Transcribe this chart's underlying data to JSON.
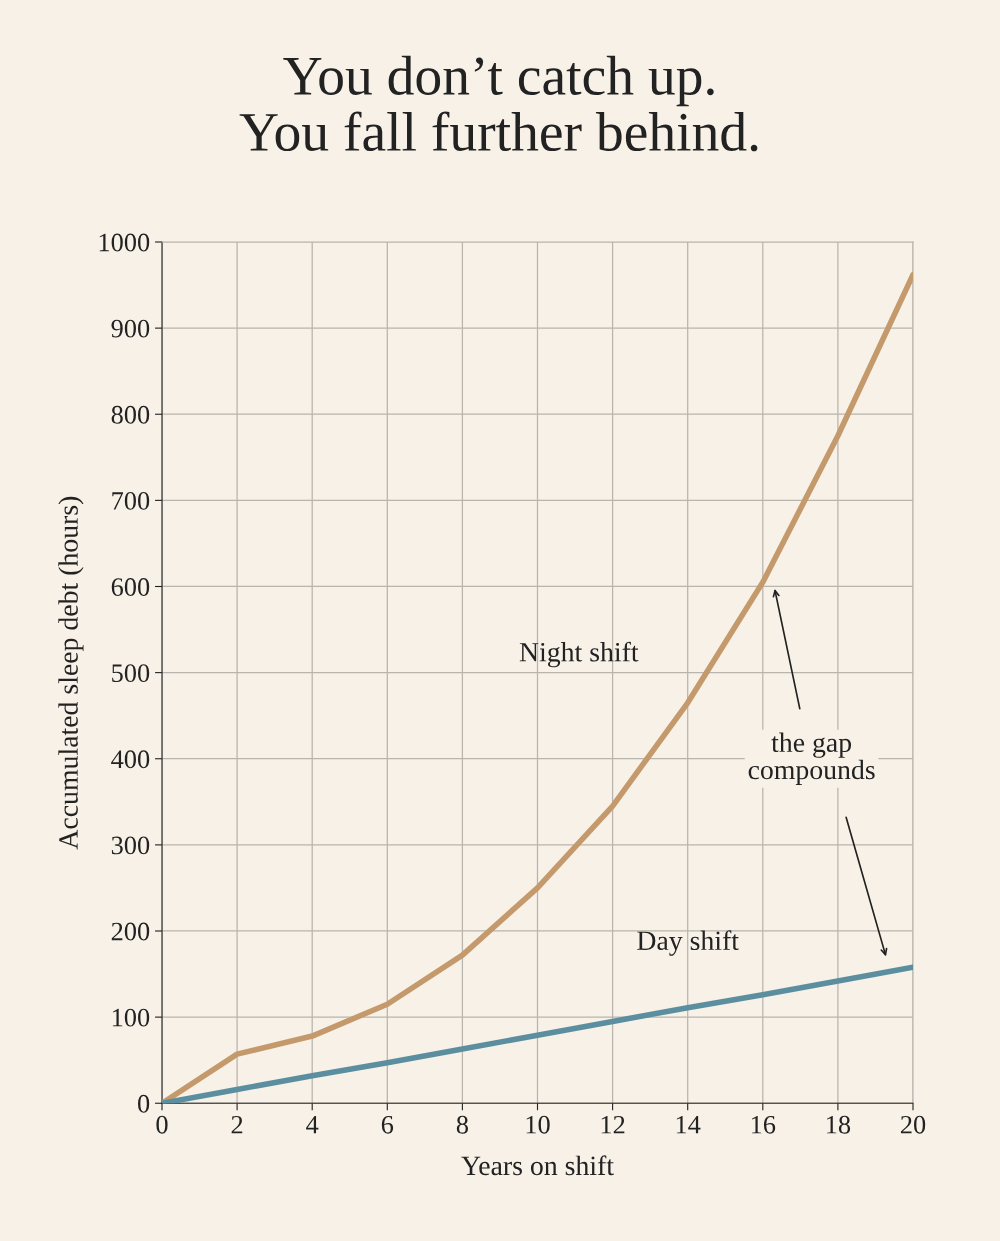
{
  "chart_data": {
    "type": "line",
    "title": "You don’t catch up.\nYou fall further behind.",
    "xlabel": "Years on shift",
    "ylabel": "Accumulated sleep debt (hours)",
    "x": [
      0,
      2,
      4,
      6,
      8,
      10,
      12,
      14,
      16,
      18,
      20
    ],
    "series": [
      {
        "name": "Night shift",
        "color": "#c49a6c",
        "values": [
          0,
          57,
          78,
          115,
          172,
          250,
          345,
          465,
          605,
          775,
          962
        ]
      },
      {
        "name": "Day shift",
        "color": "#5b8fa0",
        "values": [
          0,
          16,
          32,
          47,
          63,
          79,
          95,
          111,
          126,
          142,
          158
        ]
      }
    ],
    "annotations": [
      "the gap\ncompounds"
    ],
    "xlim": [
      0,
      20
    ],
    "ylim": [
      0,
      1000
    ],
    "xticks": [
      0,
      2,
      4,
      6,
      8,
      10,
      12,
      14,
      16,
      18,
      20
    ],
    "yticks": [
      0,
      100,
      200,
      300,
      400,
      500,
      600,
      700,
      800,
      900,
      1000
    ],
    "grid": true,
    "legend": false,
    "marker": "none",
    "line_style": "solid"
  }
}
